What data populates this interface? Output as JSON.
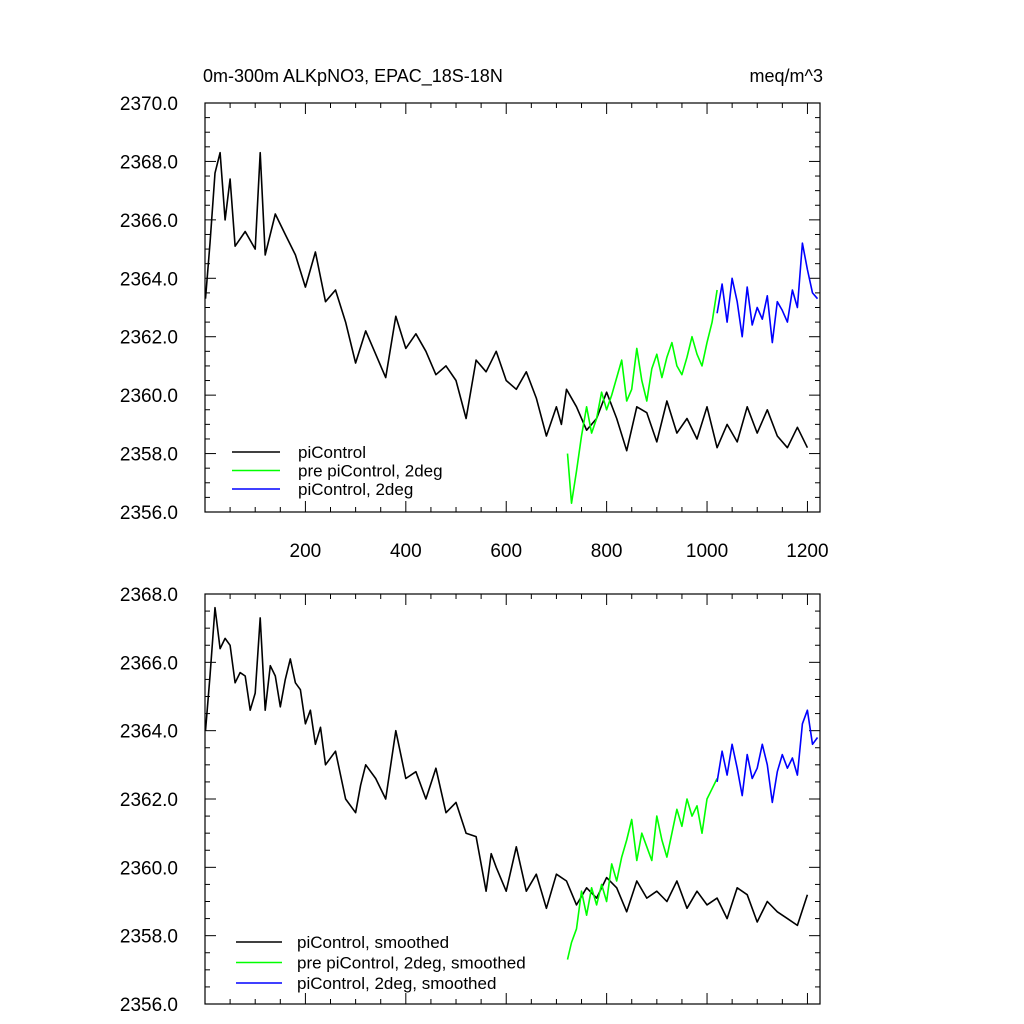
{
  "chart_data": [
    {
      "type": "line",
      "title": "0m-300m ALKpNO3, EPAC_18S-18N",
      "units": "meq/m^3",
      "xlim": [
        0,
        1225
      ],
      "ylim": [
        2356,
        2370
      ],
      "x_ticks": [
        200,
        400,
        600,
        800,
        1000,
        1200
      ],
      "y_ticks": [
        "2356.0",
        "2358.0",
        "2360.0",
        "2362.0",
        "2364.0",
        "2366.0",
        "2368.0",
        "2370.0"
      ],
      "grid": false,
      "legend_position": "bottom-left",
      "series": [
        {
          "name": "piControl",
          "color": "#000000",
          "x": [
            1,
            10,
            20,
            30,
            40,
            50,
            60,
            80,
            100,
            110,
            120,
            140,
            160,
            180,
            200,
            220,
            240,
            260,
            280,
            300,
            320,
            340,
            360,
            380,
            400,
            420,
            440,
            460,
            480,
            500,
            520,
            540,
            560,
            580,
            600,
            620,
            640,
            660,
            680,
            700,
            710,
            720,
            740,
            760,
            780,
            800,
            820,
            840,
            860,
            880,
            900,
            920,
            940,
            960,
            980,
            1000,
            1020,
            1040,
            1060,
            1080,
            1100,
            1120,
            1140,
            1160,
            1180,
            1200
          ],
          "y": [
            2363.3,
            2365.2,
            2367.6,
            2368.3,
            2366.0,
            2367.4,
            2365.1,
            2365.6,
            2365.0,
            2368.3,
            2364.8,
            2366.2,
            2365.5,
            2364.8,
            2363.7,
            2364.9,
            2363.2,
            2363.6,
            2362.5,
            2361.1,
            2362.2,
            2361.4,
            2360.6,
            2362.7,
            2361.6,
            2362.1,
            2361.5,
            2360.7,
            2361.0,
            2360.5,
            2359.2,
            2361.2,
            2360.8,
            2361.5,
            2360.5,
            2360.2,
            2360.8,
            2359.9,
            2358.6,
            2359.6,
            2359.0,
            2360.2,
            2359.6,
            2358.8,
            2359.2,
            2360.1,
            2359.2,
            2358.1,
            2359.6,
            2359.4,
            2358.4,
            2359.8,
            2358.7,
            2359.2,
            2358.5,
            2359.6,
            2358.2,
            2359.0,
            2358.4,
            2359.6,
            2358.7,
            2359.5,
            2358.6,
            2358.2,
            2358.9,
            2358.2
          ]
        },
        {
          "name": "pre piControl, 2deg",
          "color": "#00ff00",
          "x": [
            722,
            730,
            740,
            750,
            760,
            770,
            780,
            790,
            800,
            810,
            820,
            830,
            840,
            850,
            860,
            870,
            880,
            890,
            900,
            910,
            920,
            930,
            940,
            950,
            960,
            970,
            980,
            990,
            1000,
            1010,
            1020
          ],
          "y": [
            2358.0,
            2356.3,
            2357.4,
            2358.6,
            2359.6,
            2358.7,
            2359.2,
            2360.1,
            2359.5,
            2360.0,
            2360.6,
            2361.2,
            2359.8,
            2360.2,
            2361.6,
            2360.5,
            2359.8,
            2360.9,
            2361.4,
            2360.6,
            2361.3,
            2361.8,
            2361.0,
            2360.7,
            2361.3,
            2362.0,
            2361.4,
            2361.0,
            2361.8,
            2362.5,
            2363.6
          ]
        },
        {
          "name": "piControl, 2deg",
          "color": "#0000ff",
          "x": [
            1020,
            1030,
            1040,
            1050,
            1060,
            1070,
            1080,
            1090,
            1100,
            1110,
            1120,
            1130,
            1140,
            1150,
            1160,
            1170,
            1180,
            1190,
            1200,
            1210,
            1220
          ],
          "y": [
            2362.8,
            2363.8,
            2362.5,
            2364.0,
            2363.2,
            2362.0,
            2363.7,
            2362.4,
            2363.0,
            2362.6,
            2363.4,
            2361.8,
            2363.2,
            2362.9,
            2362.5,
            2363.6,
            2363.0,
            2365.2,
            2364.3,
            2363.5,
            2363.3
          ]
        }
      ]
    },
    {
      "type": "line",
      "xlim": [
        0,
        1225
      ],
      "ylim": [
        2356,
        2368
      ],
      "y_ticks": [
        "2356.0",
        "2358.0",
        "2360.0",
        "2362.0",
        "2364.0",
        "2366.0",
        "2368.0"
      ],
      "grid": false,
      "legend_position": "bottom-left",
      "series": [
        {
          "name": "piControl, smoothed",
          "color": "#000000",
          "x": [
            1,
            10,
            20,
            30,
            40,
            50,
            60,
            70,
            80,
            90,
            100,
            110,
            120,
            130,
            140,
            150,
            160,
            170,
            180,
            190,
            200,
            210,
            220,
            230,
            240,
            260,
            280,
            300,
            310,
            320,
            340,
            360,
            380,
            400,
            420,
            440,
            460,
            480,
            500,
            520,
            540,
            560,
            570,
            580,
            600,
            620,
            640,
            660,
            680,
            700,
            720,
            740,
            760,
            780,
            800,
            820,
            840,
            860,
            880,
            900,
            920,
            940,
            960,
            980,
            1000,
            1020,
            1040,
            1060,
            1080,
            1100,
            1120,
            1140,
            1160,
            1180,
            1200
          ],
          "y": [
            2364.0,
            2365.6,
            2367.6,
            2366.4,
            2366.7,
            2366.5,
            2365.4,
            2365.7,
            2365.6,
            2364.6,
            2365.1,
            2367.3,
            2364.6,
            2365.9,
            2365.6,
            2364.7,
            2365.5,
            2366.1,
            2365.4,
            2365.2,
            2364.2,
            2364.6,
            2363.6,
            2364.1,
            2363.0,
            2363.4,
            2362.0,
            2361.6,
            2362.4,
            2363.0,
            2362.6,
            2362.0,
            2364.0,
            2362.6,
            2362.8,
            2362.0,
            2362.9,
            2361.6,
            2361.9,
            2361.0,
            2360.9,
            2359.3,
            2360.4,
            2360.0,
            2359.3,
            2360.6,
            2359.3,
            2359.8,
            2358.8,
            2359.8,
            2359.6,
            2358.9,
            2359.4,
            2359.1,
            2359.7,
            2359.4,
            2358.7,
            2359.6,
            2359.1,
            2359.3,
            2359.0,
            2359.6,
            2358.8,
            2359.3,
            2358.9,
            2359.1,
            2358.5,
            2359.4,
            2359.2,
            2358.4,
            2359.0,
            2358.7,
            2358.5,
            2358.3,
            2359.2
          ]
        },
        {
          "name": "pre piControl, 2deg, smoothed",
          "color": "#00ff00",
          "x": [
            722,
            730,
            740,
            750,
            760,
            770,
            780,
            790,
            800,
            810,
            820,
            830,
            840,
            850,
            860,
            870,
            880,
            890,
            900,
            910,
            920,
            930,
            940,
            950,
            960,
            970,
            980,
            990,
            1000,
            1010,
            1020
          ],
          "y": [
            2357.3,
            2357.8,
            2358.2,
            2359.3,
            2358.6,
            2359.4,
            2358.9,
            2359.5,
            2359.0,
            2360.1,
            2359.6,
            2360.3,
            2360.8,
            2361.4,
            2360.2,
            2361.0,
            2360.6,
            2360.2,
            2361.5,
            2360.8,
            2360.3,
            2361.0,
            2361.7,
            2361.2,
            2362.0,
            2361.5,
            2361.8,
            2361.0,
            2362.0,
            2362.3,
            2362.6
          ]
        },
        {
          "name": "piControl, 2deg, smoothed",
          "color": "#0000ff",
          "x": [
            1020,
            1030,
            1040,
            1050,
            1060,
            1070,
            1080,
            1090,
            1100,
            1110,
            1120,
            1130,
            1140,
            1150,
            1160,
            1170,
            1180,
            1190,
            1200,
            1210,
            1220
          ],
          "y": [
            2362.5,
            2363.4,
            2362.7,
            2363.6,
            2362.9,
            2362.1,
            2363.3,
            2362.6,
            2362.9,
            2363.6,
            2363.0,
            2361.9,
            2362.8,
            2363.3,
            2362.9,
            2363.2,
            2362.7,
            2364.2,
            2364.6,
            2363.6,
            2363.8
          ]
        }
      ]
    }
  ]
}
